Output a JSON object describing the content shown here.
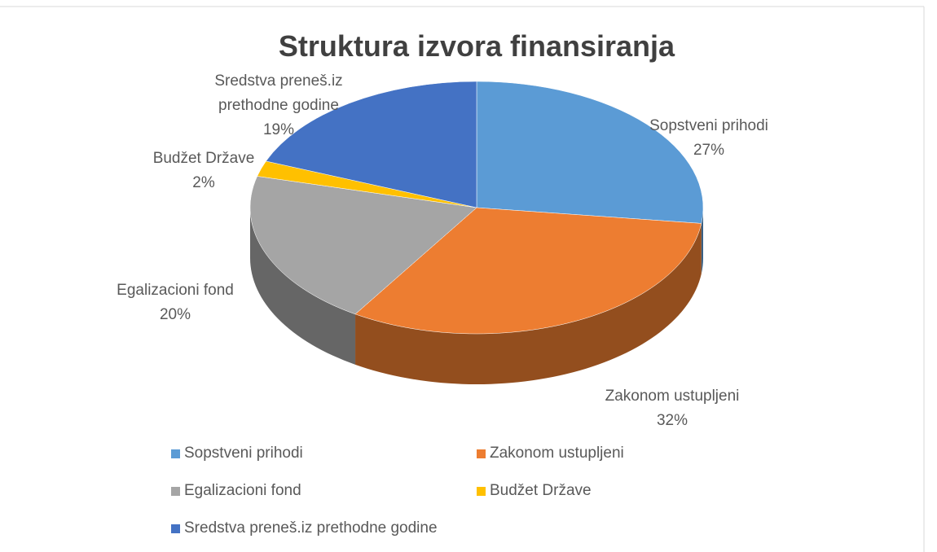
{
  "chart_data": {
    "type": "pie",
    "title": "Struktura izvora finansiranja",
    "categories": [
      "Sopstveni prihodi",
      "Zakonom ustupljeni",
      "Egalizacioni fond",
      "Budžet Države",
      "Sredstva preneš.iz prethodne godine"
    ],
    "values": [
      27,
      32,
      20,
      2,
      19
    ],
    "value_labels": [
      "27%",
      "32%",
      "20%",
      "2%",
      "19%"
    ],
    "colors": [
      "#5b9bd5",
      "#ed7d31",
      "#a5a5a5",
      "#ffc000",
      "#4472c4"
    ],
    "legend": "bottom"
  }
}
